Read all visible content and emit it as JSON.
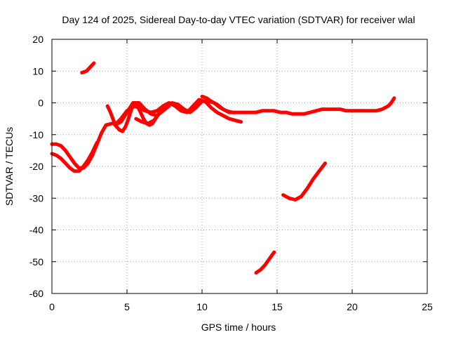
{
  "chart_data": {
    "type": "line",
    "title": "Day 124 of 2025, Sidereal Day-to-day VTEC variation (SDTVAR) for receiver wlal",
    "xlabel": "GPS time / hours",
    "ylabel": "SDTVAR / TECUs",
    "xlim": [
      0,
      25
    ],
    "ylim": [
      -60,
      20
    ],
    "xticks": [
      0,
      5,
      10,
      15,
      20,
      25
    ],
    "yticks": [
      20,
      10,
      0,
      -10,
      -20,
      -30,
      -40,
      -50,
      -60
    ],
    "grid": true,
    "legend": "none",
    "series_color": "#ff0000",
    "series": [
      {
        "x": [
          0.0,
          0.3,
          0.6,
          0.9,
          1.2,
          1.5,
          1.8,
          2.1,
          2.4,
          2.7,
          3.0
        ],
        "y": [
          -16,
          -16.5,
          -17.5,
          -19,
          -20.5,
          -21.5,
          -21.5,
          -20,
          -18,
          -15.5,
          -12.5
        ]
      },
      {
        "x": [
          0.0,
          0.3,
          0.6,
          0.9,
          1.2,
          1.5,
          1.8,
          2.1,
          2.4,
          2.7,
          3.0,
          3.3,
          3.6,
          4.0,
          4.3,
          4.6,
          5.0,
          5.4,
          5.8,
          6.2,
          6.6,
          7.0,
          7.4,
          7.8,
          8.2,
          8.6,
          9.0,
          9.4,
          9.8,
          10.2,
          10.6,
          11.0,
          11.4,
          11.8,
          12.2,
          12.6
        ],
        "y": [
          -13,
          -13,
          -13.5,
          -15,
          -17,
          -19,
          -20.5,
          -20.5,
          -19,
          -16.5,
          -13,
          -9.5,
          -7,
          -6.5,
          -6.5,
          -5,
          -2.5,
          -1,
          -1.5,
          -2.5,
          -3,
          -2.5,
          -1,
          0,
          -1,
          -2.5,
          -3,
          -1,
          1,
          0.5,
          -1.5,
          -3,
          -4,
          -5,
          -5.5,
          -6
        ]
      },
      {
        "x": [
          3.7,
          3.9,
          4.1,
          4.3,
          4.5,
          4.7,
          4.9,
          5.1,
          5.3,
          5.5,
          5.7,
          5.9,
          6.1,
          6.3,
          6.5,
          6.7,
          6.9,
          7.1,
          7.3
        ],
        "y": [
          -1,
          -3,
          -5.5,
          -7.5,
          -8.5,
          -9,
          -7.5,
          -5,
          -2,
          -0.5,
          -1,
          -3,
          -5,
          -6.5,
          -7,
          -6.5,
          -5,
          -3.5,
          -2.5
        ]
      },
      {
        "x": [
          4.2,
          4.6,
          5.0,
          5.4,
          5.8,
          6.2,
          6.6,
          7.0,
          7.4,
          7.8
        ],
        "y": [
          -7,
          -6,
          -3,
          0,
          0,
          -2,
          -3.5,
          -4,
          -2.5,
          -1
        ]
      },
      {
        "x": [
          5.6,
          6.0,
          6.4,
          6.8,
          7.2,
          7.6,
          8.0,
          8.4,
          8.8,
          9.2,
          9.6,
          10.0,
          10.4,
          10.8,
          11.2,
          11.6,
          12.0,
          12.4,
          12.8,
          13.2,
          13.6,
          14.0,
          14.4,
          14.8,
          15.2,
          15.6,
          16.0,
          16.4,
          16.8,
          17.2,
          17.6,
          18.0,
          18.4,
          18.8,
          19.2,
          19.6,
          20.0,
          20.4,
          20.8,
          21.2,
          21.6,
          22.0,
          22.4,
          22.6,
          22.8
        ],
        "y": [
          -5,
          -6,
          -6.5,
          -5.5,
          -3,
          -1,
          0,
          -0.5,
          -2,
          -3,
          -1.5,
          0.5,
          0.5,
          0,
          -1.5,
          -2.5,
          -3,
          -3,
          -3,
          -3,
          -3,
          -2.5,
          -2.5,
          -2.5,
          -3,
          -3,
          -3.5,
          -3.5,
          -3.5,
          -3,
          -2.5,
          -2,
          -2,
          -2,
          -2,
          -2.5,
          -2.5,
          -2.5,
          -2.5,
          -2.5,
          -2.5,
          -2,
          -1,
          0,
          1.5
        ]
      },
      {
        "x": [
          10.0,
          10.3,
          10.6,
          11.0,
          11.4,
          11.8,
          12.2
        ],
        "y": [
          2,
          1.5,
          0.5,
          -0.5,
          -2,
          -3,
          -3
        ]
      },
      {
        "x": [
          2.0,
          2.3,
          2.6,
          2.8
        ],
        "y": [
          9.5,
          10,
          11.5,
          12.5
        ]
      },
      {
        "x": [
          15.4,
          15.8,
          16.2,
          16.6,
          17.0,
          17.4,
          17.8,
          18.2
        ],
        "y": [
          -29,
          -30,
          -30.5,
          -29.5,
          -27,
          -24,
          -21.5,
          -19
        ]
      },
      {
        "x": [
          13.6,
          13.9,
          14.2,
          14.5,
          14.8
        ],
        "y": [
          -53.5,
          -52.5,
          -51,
          -49,
          -47
        ]
      }
    ]
  }
}
